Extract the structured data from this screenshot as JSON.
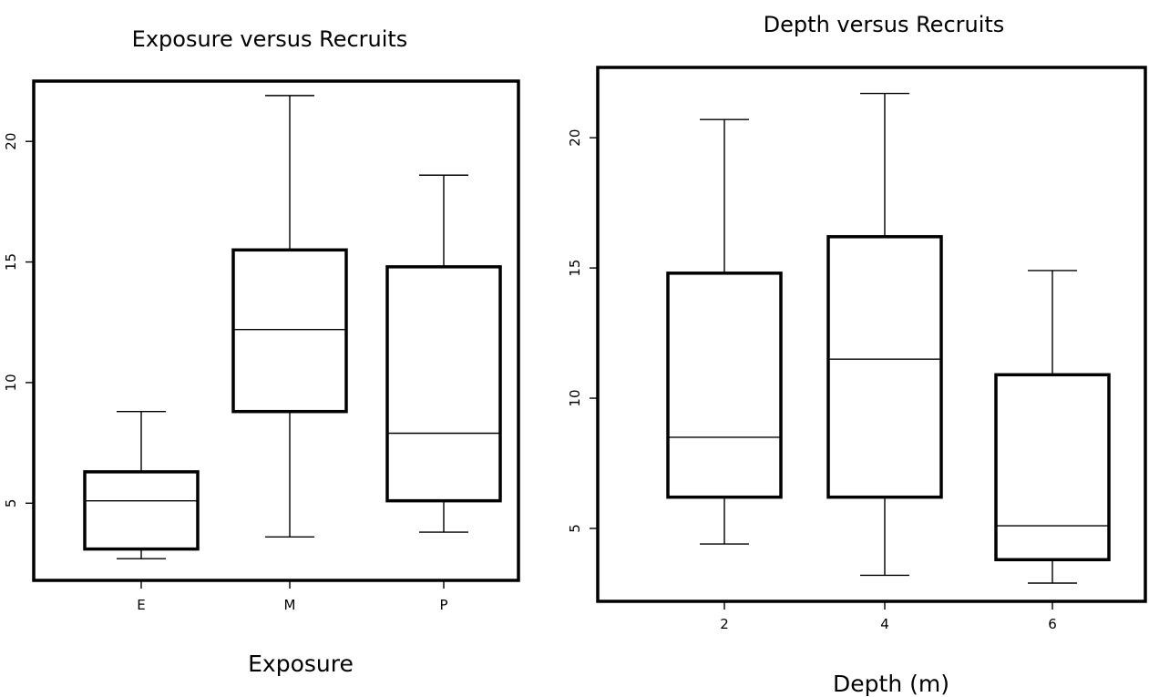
{
  "chart_data": [
    {
      "type": "boxplot",
      "title": "Exposure versus Recruits",
      "xlabel": "Exposure",
      "ylabel": "",
      "categories": [
        "E",
        "M",
        "P"
      ],
      "y_ticks": [
        5,
        10,
        15,
        20
      ],
      "ylim": [
        1.8,
        22.5
      ],
      "grid": false,
      "boxes": [
        {
          "category": "E",
          "whisker_low": 2.7,
          "q1": 3.1,
          "median": 5.1,
          "q3": 6.3,
          "whisker_high": 8.8
        },
        {
          "category": "M",
          "whisker_low": 3.6,
          "q1": 8.8,
          "median": 12.2,
          "q3": 15.5,
          "whisker_high": 21.9
        },
        {
          "category": "P",
          "whisker_low": 3.8,
          "q1": 5.1,
          "median": 7.9,
          "q3": 14.8,
          "whisker_high": 18.6
        }
      ]
    },
    {
      "type": "boxplot",
      "title": "Depth versus Recruits",
      "xlabel": "Depth (m)",
      "ylabel": "",
      "categories": [
        "2",
        "4",
        "6"
      ],
      "y_ticks": [
        5,
        10,
        15,
        20
      ],
      "ylim": [
        2.2,
        22.7
      ],
      "grid": false,
      "boxes": [
        {
          "category": "2",
          "whisker_low": 4.4,
          "q1": 6.2,
          "median": 8.5,
          "q3": 14.8,
          "whisker_high": 20.7
        },
        {
          "category": "4",
          "whisker_low": 3.2,
          "q1": 6.2,
          "median": 11.5,
          "q3": 16.2,
          "whisker_high": 21.7
        },
        {
          "category": "6",
          "whisker_low": 2.9,
          "q1": 3.8,
          "median": 5.1,
          "q3": 10.9,
          "whisker_high": 14.9
        }
      ]
    }
  ]
}
